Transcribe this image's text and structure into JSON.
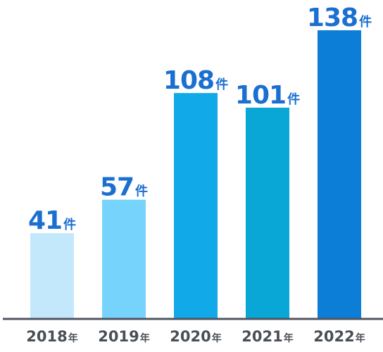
{
  "chart_data": {
    "type": "bar",
    "categories": [
      "2018",
      "2019",
      "2020",
      "2021",
      "2022"
    ],
    "category_suffix": "年",
    "values": [
      41,
      57,
      108,
      101,
      138
    ],
    "value_suffix": "件",
    "colors": [
      "#c3e7fb",
      "#76d3fb",
      "#12a9e9",
      "#08a7d6",
      "#0c7ed7"
    ],
    "label_color": "#1b6fd1",
    "axis_label_color": "#4a4f57",
    "baseline_color": "#505562",
    "ylim": [
      0,
      138
    ],
    "grid": false,
    "legend": "none",
    "title": "",
    "xlabel": "",
    "ylabel": ""
  }
}
